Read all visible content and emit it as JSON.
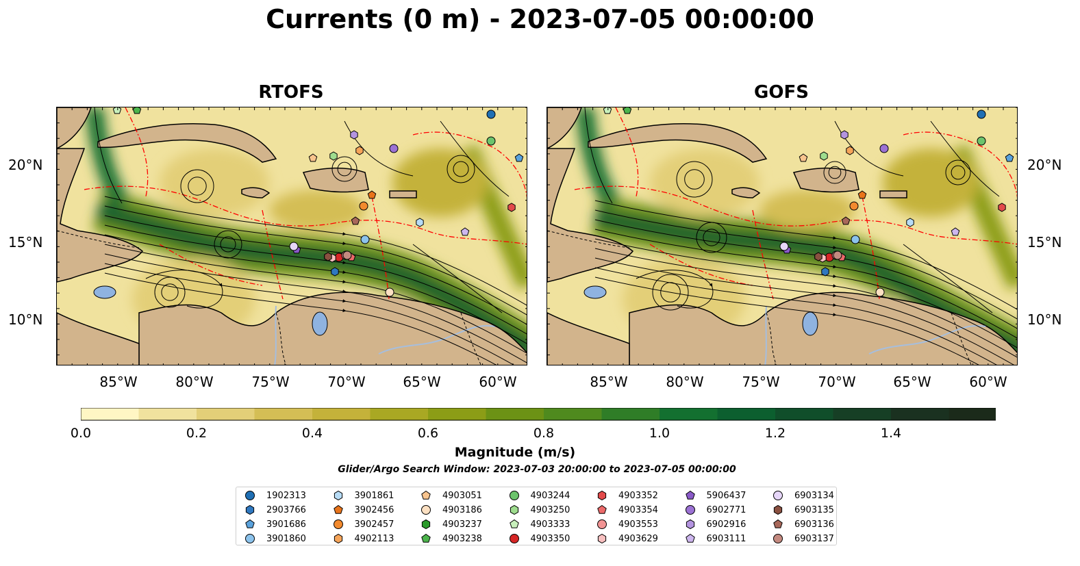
{
  "title": "Currents (0 m) - 2023-07-05 00:00:00",
  "panels": [
    {
      "title": "RTOFS"
    },
    {
      "title": "GOFS"
    }
  ],
  "axes": {
    "lat_labels": [
      "20°N",
      "15°N",
      "10°N"
    ],
    "lon_labels": [
      "85°W",
      "80°W",
      "75°W",
      "70°W",
      "65°W",
      "60°W"
    ]
  },
  "colorbar": {
    "label": "Magnitude (m/s)",
    "ticks": [
      "0.0",
      "0.2",
      "0.4",
      "0.6",
      "0.8",
      "1.0",
      "1.2",
      "1.4"
    ],
    "colors": [
      "#fff6c4",
      "#f0e29e",
      "#e3cf78",
      "#d4be55",
      "#c4b23a",
      "#a9a823",
      "#8c9d16",
      "#6c9215",
      "#4f8a1e",
      "#2f7d27",
      "#137030",
      "#0c5f2f",
      "#104e2a",
      "#163f25",
      "#1a3120",
      "#1b2a1a"
    ]
  },
  "search_window": "Glider/Argo Search Window: 2023-07-03 20:00:00 to 2023-07-05 00:00:00",
  "legend": [
    {
      "id": "1902313",
      "marker": "circle",
      "color": "#1f6fb4"
    },
    {
      "id": "2903766",
      "marker": "hexagon",
      "color": "#2f78c0"
    },
    {
      "id": "3901686",
      "marker": "pentagon",
      "color": "#5aa2dc"
    },
    {
      "id": "3901860",
      "marker": "circle",
      "color": "#8cc3ec"
    },
    {
      "id": "3901861",
      "marker": "hexagon",
      "color": "#b7dcf6"
    },
    {
      "id": "3902456",
      "marker": "pentagon",
      "color": "#e8741b"
    },
    {
      "id": "3902457",
      "marker": "circle",
      "color": "#f28a2e"
    },
    {
      "id": "4902113",
      "marker": "hexagon",
      "color": "#f6a55a"
    },
    {
      "id": "4903051",
      "marker": "pentagon",
      "color": "#f8c48e"
    },
    {
      "id": "4903186",
      "marker": "circle",
      "color": "#fce0c2"
    },
    {
      "id": "4903237",
      "marker": "hexagon",
      "color": "#2a9a2a"
    },
    {
      "id": "4903238",
      "marker": "pentagon",
      "color": "#4cb44c"
    },
    {
      "id": "4903244",
      "marker": "circle",
      "color": "#6cc46c"
    },
    {
      "id": "4903250",
      "marker": "hexagon",
      "color": "#9edc8e"
    },
    {
      "id": "4903333",
      "marker": "pentagon",
      "color": "#c8f0bc"
    },
    {
      "id": "4903350",
      "marker": "circle",
      "color": "#d62626"
    },
    {
      "id": "4903352",
      "marker": "hexagon",
      "color": "#e24a4a"
    },
    {
      "id": "4903354",
      "marker": "pentagon",
      "color": "#ec6a6a"
    },
    {
      "id": "4903553",
      "marker": "circle",
      "color": "#f29494"
    },
    {
      "id": "4903629",
      "marker": "hexagon",
      "color": "#f8c0c0"
    },
    {
      "id": "5906437",
      "marker": "pentagon",
      "color": "#8a5ac8"
    },
    {
      "id": "6902771",
      "marker": "circle",
      "color": "#9c72d4"
    },
    {
      "id": "6902916",
      "marker": "hexagon",
      "color": "#b494e0"
    },
    {
      "id": "6903111",
      "marker": "pentagon",
      "color": "#cdb6ee"
    },
    {
      "id": "6903134",
      "marker": "circle",
      "color": "#e6d6f8"
    },
    {
      "id": "6903135",
      "marker": "hexagon",
      "color": "#8a5040"
    },
    {
      "id": "6903136",
      "marker": "pentagon",
      "color": "#a8685a"
    },
    {
      "id": "6903137",
      "marker": "circle",
      "color": "#c48a80"
    }
  ],
  "colors": {
    "land": "#d2b48c",
    "lakes": "#8fb3e0",
    "eez_lines": "#ff0000",
    "streamlines": "#000000"
  }
}
